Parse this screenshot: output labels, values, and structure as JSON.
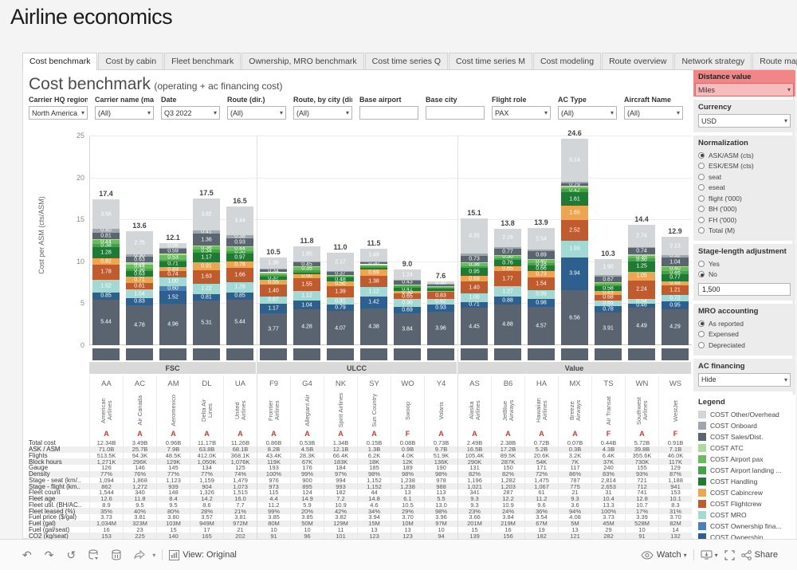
{
  "title": "Airline economics",
  "tabs": {
    "selected": "Cost benchmark",
    "items": [
      "Cost benchmark",
      "Cost by cabin",
      "Fleet benchmark",
      "Ownership, MRO benchmark",
      "Cost time series Q",
      "Cost time series M",
      "Cost modeling",
      "Route overview",
      "Network strategy",
      "Route map",
      "User Manual"
    ]
  },
  "header": {
    "title": "Cost benchmark",
    "subtitle": "(operating + ac financing cost)"
  },
  "filters": [
    {
      "label": "Carrier HQ region",
      "value": "North America",
      "type": "select"
    },
    {
      "label": "Carrier name (mar...",
      "value": "(All)",
      "type": "select"
    },
    {
      "label": "Date",
      "value": "Q3 2022",
      "type": "select"
    },
    {
      "label": "Route (dir.)",
      "value": "(All)",
      "type": "select"
    },
    {
      "label": "Route, by city (dir.)",
      "value": "(All)",
      "type": "select"
    },
    {
      "label": "Base airport",
      "value": "",
      "type": "input"
    },
    {
      "label": "Base city",
      "value": "",
      "type": "input"
    },
    {
      "label": "Flight role",
      "value": "PAX",
      "type": "select"
    },
    {
      "label": "AC Type",
      "value": "(All)",
      "type": "select"
    },
    {
      "label": "Aircraft Name",
      "value": "(All)",
      "type": "select"
    }
  ],
  "sidebar": {
    "distance": {
      "label": "Distance value",
      "value": "Miles",
      "header_color": "#f28585",
      "field_color": "#f7bcbc"
    },
    "currency": {
      "label": "Currency",
      "value": "USD"
    },
    "normalization": {
      "label": "Normalization",
      "selected": "ASK/ASM (cts)",
      "options": [
        "ASK/ASM (cts)",
        "ESK/ESM (cts)",
        "seat",
        "eseat",
        "flight ('000)",
        "BH ('000)",
        "FH ('000)",
        "Total (M)"
      ]
    },
    "stage_length": {
      "label": "Stage-length adjustment",
      "selected": "No",
      "options": [
        "Yes",
        "No"
      ],
      "input_value": "1,500"
    },
    "mro": {
      "label": "MRO accounting",
      "selected": "As reported",
      "options": [
        "As reported",
        "Expensed",
        "Depreciated"
      ]
    },
    "ac_financing": {
      "label": "AC financing",
      "value": "Hide"
    },
    "legend": {
      "label": "Legend",
      "items": [
        {
          "label": "COST Other/Overhead",
          "color": "#d2d6d9"
        },
        {
          "label": "COST Onboard",
          "color": "#9fa6ad"
        },
        {
          "label": "COST Sales/Dist.",
          "color": "#5b6570"
        },
        {
          "label": "COST ATC",
          "color": "#aedaa0"
        },
        {
          "label": "COST Airport pax",
          "color": "#6abb5e"
        },
        {
          "label": "COST Airport landing ...",
          "color": "#44a248"
        },
        {
          "label": "COST Handling",
          "color": "#1e7b34"
        },
        {
          "label": "COST Cabincrew",
          "color": "#eda552"
        },
        {
          "label": "COST Flightcrew",
          "color": "#c05b2d"
        },
        {
          "label": "COST MRO",
          "color": "#a2d9d4"
        },
        {
          "label": "COST Ownership fina...",
          "color": "#4a7fba"
        },
        {
          "label": "COST Ownership",
          "color": "#2d608f"
        },
        {
          "label": "COST Fuel",
          "color": "#5a6470"
        }
      ]
    }
  },
  "chart_data": {
    "type": "bar",
    "stacked": true,
    "ylabel": "Cost per ASM (cts/ASM)",
    "ylim": [
      0,
      25
    ],
    "yticks": [
      0,
      5,
      10,
      15,
      20,
      25
    ],
    "grid": true,
    "segments_bottom_to_top": [
      {
        "name": "COST Fuel",
        "color": "#5a6470"
      },
      {
        "name": "COST Ownership",
        "color": "#2d608f"
      },
      {
        "name": "COST Ownership financing",
        "color": "#4a7fba"
      },
      {
        "name": "COST MRO",
        "color": "#a2d9d4"
      },
      {
        "name": "COST Flightcrew",
        "color": "#c05b2d"
      },
      {
        "name": "COST Cabincrew",
        "color": "#eda552"
      },
      {
        "name": "COST Handling",
        "color": "#1e7b34"
      },
      {
        "name": "COST Airport landing",
        "color": "#44a248"
      },
      {
        "name": "COST Airport pax",
        "color": "#6abb5e"
      },
      {
        "name": "COST ATC",
        "color": "#aedaa0"
      },
      {
        "name": "COST Sales/Dist.",
        "color": "#5b6570"
      },
      {
        "name": "COST Onboard",
        "color": "#9fa6ad"
      },
      {
        "name": "COST Other/Overhead",
        "color": "#d2d6d9"
      }
    ],
    "groups": [
      {
        "name": "FSC",
        "start": 0,
        "count": 5
      },
      {
        "name": "ULCC",
        "start": 5,
        "count": 6
      },
      {
        "name": "Value",
        "start": 11,
        "count": 7
      }
    ],
    "airlines": [
      {
        "code": "AA",
        "name": "American Airlines",
        "marker": "A",
        "total_label": "17.4",
        "values": [
          5.44,
          0.85,
          0.0,
          1.52,
          1.78,
          0.82,
          1.28,
          0.38,
          0.44,
          0.13,
          0.81,
          0.4,
          3.56
        ]
      },
      {
        "code": "AC",
        "name": "Air Canada",
        "marker": "A",
        "total_label": "13.6",
        "values": [
          4.78,
          0.83,
          0.0,
          1.04,
          0.81,
          0.71,
          0.63,
          0.36,
          0.44,
          0.28,
          0.63,
          0.3,
          2.75
        ]
      },
      {
        "code": "AM",
        "name": "Aeromexico",
        "marker": "A",
        "total_label": "12.1",
        "values": [
          4.96,
          1.52,
          0.6,
          1.0,
          0.74,
          0.49,
          0.71,
          0.18,
          0.53,
          0.2,
          0.59,
          0.1,
          0.56
        ]
      },
      {
        "code": "DL",
        "name": "Delta Air Lines",
        "marker": "A",
        "total_label": "17.5",
        "values": [
          5.31,
          0.81,
          0.0,
          1.22,
          1.63,
          0.91,
          1.17,
          0.34,
          0.36,
          0.16,
          1.36,
          0.41,
          3.82
        ]
      },
      {
        "code": "UA",
        "name": "United Airlines",
        "marker": "A",
        "total_label": "16.5",
        "values": [
          5.44,
          0.85,
          0.0,
          1.26,
          1.66,
          0.78,
          0.97,
          0.3,
          0.44,
          0.1,
          0.93,
          0.38,
          3.44
        ]
      },
      {
        "code": "F9",
        "name": "Frontier Airlines",
        "marker": "A",
        "total_label": "10.5",
        "values": [
          3.77,
          1.17,
          0.0,
          0.87,
          1.4,
          0.55,
          0.37,
          0.2,
          0.25,
          0.12,
          0.34,
          0.1,
          1.36
        ]
      },
      {
        "code": "G4",
        "name": "Allegiant Air",
        "marker": "A",
        "total_label": "11.8",
        "values": [
          4.28,
          1.04,
          0.0,
          1.12,
          1.55,
          0.5,
          0.19,
          0.25,
          0.35,
          0.12,
          0.45,
          0.1,
          1.85
        ]
      },
      {
        "code": "NK",
        "name": "Spirit Airlines",
        "marker": "A",
        "total_label": "11.0",
        "values": [
          4.07,
          0.79,
          0.0,
          0.81,
          1.39,
          0.5,
          0.48,
          0.12,
          0.18,
          0.06,
          0.37,
          0.06,
          2.17
        ]
      },
      {
        "code": "SY",
        "name": "Sun Country",
        "marker": "A",
        "total_label": "11.5",
        "values": [
          4.38,
          1.42,
          0.0,
          1.12,
          1.38,
          0.69,
          0.25,
          0.15,
          0.2,
          0.06,
          0.3,
          0.06,
          1.49
        ]
      },
      {
        "code": "WO",
        "name": "Swoop",
        "marker": "F",
        "total_label": "9.0",
        "values": [
          3.84,
          0.69,
          0.0,
          0.96,
          0.65,
          0.3,
          0.41,
          0.2,
          0.15,
          0.07,
          0.43,
          0.06,
          1.24
        ]
      },
      {
        "code": "Y4",
        "name": "Volaris",
        "marker": "A",
        "total_label": "7.6",
        "values": [
          3.96,
          0.93,
          0.0,
          0.62,
          0.83,
          0.15,
          0.25,
          0.12,
          0.1,
          0.05,
          0.25,
          0.04,
          0.3
        ]
      },
      {
        "code": "AS",
        "name": "Alaska Airlines",
        "marker": "A",
        "total_label": "15.1",
        "values": [
          4.45,
          0.71,
          0.0,
          1.0,
          1.4,
          0.69,
          0.95,
          0.25,
          0.36,
          0.1,
          0.73,
          0.25,
          4.26
        ]
      },
      {
        "code": "B6",
        "name": "JetBlue Airways",
        "marker": "A",
        "total_label": "13.8",
        "values": [
          4.88,
          0.88,
          0.0,
          1.27,
          1.77,
          0.65,
          0.76,
          0.19,
          0.3,
          0.05,
          0.77,
          0.21,
          2.16
        ]
      },
      {
        "code": "HA",
        "name": "Hawaiian Airlines",
        "marker": "A",
        "total_label": "13.9",
        "values": [
          4.57,
          0.98,
          0.0,
          0.99,
          1.54,
          0.73,
          0.66,
          0.35,
          0.4,
          0.08,
          0.89,
          0.2,
          2.54
        ]
      },
      {
        "code": "MX",
        "name": "Breeze Airways",
        "marker": "A",
        "total_label": "24.6",
        "values": [
          6.56,
          3.94,
          0.0,
          1.93,
          2.52,
          1.65,
          1.61,
          0.42,
          0.22,
          0.14,
          0.29,
          0.18,
          5.14
        ]
      },
      {
        "code": "TS",
        "name": "Air Transat",
        "marker": "F",
        "total_label": "10.3",
        "values": [
          3.91,
          0.78,
          0.0,
          0.65,
          0.68,
          0.45,
          0.58,
          0.19,
          0.16,
          0.08,
          0.67,
          0.25,
          1.9
        ]
      },
      {
        "code": "WN",
        "name": "Southwest Airlines",
        "marker": "A",
        "total_label": "14.4",
        "values": [
          4.49,
          0.46,
          0.0,
          0.54,
          2.24,
          1.05,
          1.25,
          0.3,
          0.35,
          0.14,
          0.74,
          0.09,
          2.74
        ]
      },
      {
        "code": "WS",
        "name": "WestJet",
        "marker": "F",
        "total_label": "12.9",
        "values": [
          4.29,
          0.95,
          0.0,
          0.72,
          1.21,
          0.48,
          0.77,
          0.46,
          0.4,
          0.12,
          1.04,
          0.32,
          2.13
        ]
      }
    ]
  },
  "table": {
    "rows": [
      {
        "label": "Total cost",
        "values": [
          "12.34B",
          "3.49B",
          "0.96B",
          "11.17B",
          "11.26B",
          "0.86B",
          "0.53B",
          "1.34B",
          "0.15B",
          "0.08B",
          "0.73B",
          "2.49B",
          "2.38B",
          "0.72B",
          "0.07B",
          "0.44B",
          "5.72B",
          "0.91B"
        ]
      },
      {
        "label": "ASK / ASM",
        "values": [
          "71.0B",
          "25.7B",
          "7.9B",
          "63.8B",
          "68.1B",
          "8.2B",
          "4.5B",
          "12.1B",
          "1.3B",
          "0.9B",
          "9.7B",
          "16.5B",
          "17.2B",
          "5.2B",
          "0.3B",
          "4.3B",
          "39.8B",
          "7.1B"
        ]
      },
      {
        "label": "Flights",
        "values": [
          "513.5K",
          "94.3K",
          "48.5K",
          "412.0K",
          "368.1K",
          "43.4K",
          "28.3K",
          "66.4K",
          "6.2K",
          "4.0K",
          "51.9K",
          "105.4K",
          "89.5K",
          "20.6K",
          "3.2K",
          "6.4K",
          "355.6K",
          "46.0K"
        ]
      },
      {
        "label": "Block hours",
        "values": [
          "1,271K",
          "296K",
          "129K",
          "1,050K",
          "1,076K",
          "119K",
          "67K",
          "183K",
          "18K",
          "12K",
          "136K",
          "290K",
          "287K",
          "54K",
          "7K",
          "37K",
          "730K",
          "117K"
        ]
      },
      {
        "label": "Gauge",
        "values": [
          "126",
          "146",
          "145",
          "134",
          "125",
          "193",
          "176",
          "184",
          "185",
          "189",
          "190",
          "131",
          "150",
          "171",
          "117",
          "240",
          "155",
          "129"
        ]
      },
      {
        "label": "Density",
        "values": [
          "77%",
          "76%",
          "77%",
          "77%",
          "74%",
          "100%",
          "99%",
          "97%",
          "98%",
          "98%",
          "98%",
          "82%",
          "82%",
          "72%",
          "86%",
          "83%",
          "93%",
          "87%"
        ]
      },
      {
        "label": "Stage - seat (km/..",
        "values": [
          "1,094",
          "1,868",
          "1,123",
          "1,159",
          "1,479",
          "976",
          "900",
          "994",
          "1,152",
          "1,238",
          "978",
          "1,196",
          "1,282",
          "1,475",
          "787",
          "2,814",
          "721",
          "1,188"
        ]
      },
      {
        "label": "Stage - flight (km..",
        "values": [
          "862",
          "1,272",
          "939",
          "904",
          "1,073",
          "973",
          "895",
          "993",
          "1,152",
          "1,238",
          "988",
          "1,021",
          "1,203",
          "1,067",
          "775",
          "2,653",
          "712",
          "941"
        ]
      },
      {
        "label": "Fleet count",
        "values": [
          "1,544",
          "340",
          "148",
          "1,326",
          "1,515",
          "115",
          "124",
          "182",
          "44",
          "13",
          "113",
          "341",
          "287",
          "61",
          "21",
          "31",
          "741",
          "153"
        ]
      },
      {
        "label": "Fleet age",
        "values": [
          "12.6",
          "11.8",
          "8.4",
          "14.2",
          "16.0",
          "4.4",
          "14.9",
          "7.2",
          "14.8",
          "6.1",
          "5.5",
          "9.3",
          "12.2",
          "11.2",
          "9.3",
          "10.4",
          "12.8",
          "10.1"
        ]
      },
      {
        "label": "Fleet util. (BH/AC..",
        "values": [
          "8.9",
          "9.5",
          "9.5",
          "8.6",
          "7.7",
          "11.2",
          "5.9",
          "10.9",
          "4.6",
          "10.5",
          "13.0",
          "9.3",
          "10.9",
          "9.6",
          "3.6",
          "13.3",
          "10.7",
          "8.3"
        ]
      },
      {
        "label": "Fleet leased (%)",
        "values": [
          "35%",
          "40%",
          "80%",
          "28%",
          "21%",
          "99%",
          "20%",
          "42%",
          "34%",
          "29%",
          "98%",
          "23%",
          "24%",
          "36%",
          "94%",
          "100%",
          "17%",
          "31%"
        ]
      },
      {
        "label": "Fuel price ($/gal)",
        "values": [
          "3.73",
          "3.81",
          "3.80",
          "3.57",
          "3.81",
          "3.85",
          "3.85",
          "3.82",
          "3.94",
          "3.70",
          "3.96",
          "3.66",
          "3.84",
          "3.54",
          "4.08",
          "3.73",
          "3.39",
          "3.70"
        ]
      },
      {
        "label": "Fuel (gal)",
        "values": [
          "1,034M",
          "323M",
          "103M",
          "949M",
          "972M",
          "80M",
          "50M",
          "129M",
          "15M",
          "10M",
          "97M",
          "201M",
          "219M",
          "67M",
          "5M",
          "45M",
          "528M",
          "82M"
        ]
      },
      {
        "label": "Fuel (gal/seat)",
        "values": [
          "16",
          "23",
          "15",
          "17",
          "21",
          "10",
          "10",
          "11",
          "13",
          "13",
          "10",
          "15",
          "16",
          "19",
          "13",
          "29",
          "10",
          "14"
        ]
      },
      {
        "label": "CO2 (kg/seat)",
        "values": [
          "153",
          "225",
          "140",
          "165",
          "202",
          "91",
          "96",
          "101",
          "123",
          "123",
          "94",
          "139",
          "156",
          "182",
          "121",
          "282",
          "91",
          "132"
        ]
      }
    ]
  },
  "toolbar": {
    "view_label": "View: Original",
    "watch_label": "Watch",
    "share_label": "Share"
  }
}
